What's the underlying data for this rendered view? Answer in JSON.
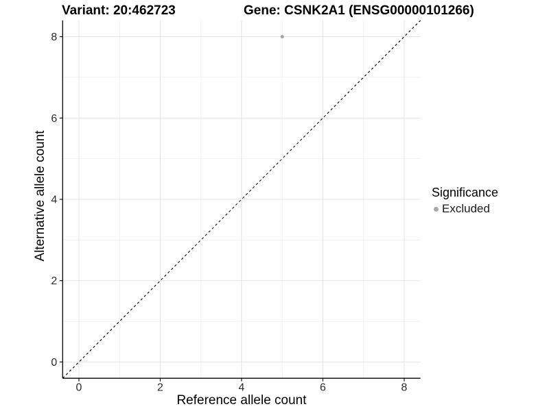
{
  "chart_data": {
    "type": "scatter",
    "titles": {
      "left": "Variant: 20:462723",
      "right": "Gene: CSNK2A1 (ENSG00000101266)"
    },
    "xlabel": "Reference allele count",
    "ylabel": "Alternative allele count",
    "xlim": [
      -0.4,
      8.4
    ],
    "ylim": [
      -0.4,
      8.4
    ],
    "xticks": [
      0,
      2,
      4,
      6,
      8
    ],
    "yticks": [
      0,
      2,
      4,
      6,
      8
    ],
    "xticks_minor": [
      1,
      3,
      5,
      7
    ],
    "yticks_minor": [
      1,
      3,
      5,
      7
    ],
    "grid": true,
    "points": [
      {
        "x": 5,
        "y": 8,
        "series": "Excluded"
      }
    ],
    "reference_line": {
      "slope": 1,
      "intercept": 0,
      "style": "dashed",
      "color": "#000000"
    },
    "legend": {
      "title": "Significance",
      "position": "right",
      "items": [
        {
          "label": "Excluded",
          "color": "#A9A9A9"
        }
      ]
    },
    "colors": {
      "background": "#FFFFFF",
      "grid_major": "#E3E3E3",
      "grid_minor": "#F0F0F0",
      "axis": "#000000",
      "tick_label": "#2b2b2b"
    }
  }
}
